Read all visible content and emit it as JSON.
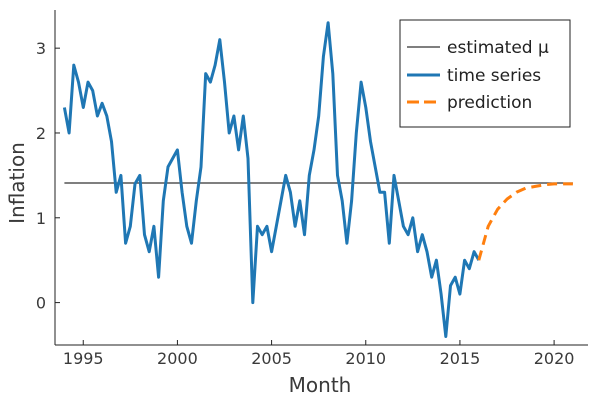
{
  "chart_data": {
    "type": "line",
    "xlabel": "Month",
    "ylabel": "Inflation",
    "xlim": [
      1993.5,
      2021.8
    ],
    "ylim": [
      -0.5,
      3.45
    ],
    "xticks": [
      1995,
      2000,
      2005,
      2010,
      2015,
      2020
    ],
    "xtick_labels": [
      "1995",
      "2000",
      "2005",
      "2010",
      "2015",
      "2020"
    ],
    "yticks": [
      0,
      1,
      2,
      3
    ],
    "ytick_labels": [
      "0",
      "1",
      "2",
      "3"
    ],
    "grid": false,
    "legend_position": "top-right",
    "series": [
      {
        "name": "estimated μ",
        "style": "solid-thin",
        "color": "#333333",
        "x": [
          1994.0,
          2021.0
        ],
        "y": [
          1.41,
          1.41
        ]
      },
      {
        "name": "time series",
        "style": "solid-thick",
        "color": "#1f77b4",
        "x": [
          1994.0,
          1994.25,
          1994.5,
          1994.75,
          1995.0,
          1995.25,
          1995.5,
          1995.75,
          1996.0,
          1996.25,
          1996.5,
          1996.75,
          1997.0,
          1997.25,
          1997.5,
          1997.75,
          1998.0,
          1998.25,
          1998.5,
          1998.75,
          1999.0,
          1999.25,
          1999.5,
          1999.75,
          2000.0,
          2000.25,
          2000.5,
          2000.75,
          2001.0,
          2001.25,
          2001.5,
          2001.75,
          2002.0,
          2002.25,
          2002.5,
          2002.75,
          2003.0,
          2003.25,
          2003.5,
          2003.75,
          2004.0,
          2004.25,
          2004.5,
          2004.75,
          2005.0,
          2005.25,
          2005.5,
          2005.75,
          2006.0,
          2006.25,
          2006.5,
          2006.75,
          2007.0,
          2007.25,
          2007.5,
          2007.75,
          2008.0,
          2008.25,
          2008.5,
          2008.75,
          2009.0,
          2009.25,
          2009.5,
          2009.75,
          2010.0,
          2010.25,
          2010.5,
          2010.75,
          2011.0,
          2011.25,
          2011.5,
          2011.75,
          2012.0,
          2012.25,
          2012.5,
          2012.75,
          2013.0,
          2013.25,
          2013.5,
          2013.75,
          2014.0,
          2014.25,
          2014.5,
          2014.75,
          2015.0,
          2015.25,
          2015.5,
          2015.75,
          2016.0
        ],
        "y": [
          2.3,
          2.0,
          2.8,
          2.6,
          2.3,
          2.6,
          2.5,
          2.2,
          2.35,
          2.2,
          1.9,
          1.3,
          1.5,
          0.7,
          0.9,
          1.4,
          1.5,
          0.8,
          0.6,
          0.9,
          0.3,
          1.2,
          1.6,
          1.7,
          1.8,
          1.3,
          0.9,
          0.7,
          1.2,
          1.6,
          2.7,
          2.6,
          2.8,
          3.1,
          2.6,
          2.0,
          2.2,
          1.8,
          2.2,
          1.7,
          0.0,
          0.9,
          0.8,
          0.9,
          0.6,
          0.9,
          1.2,
          1.5,
          1.3,
          0.9,
          1.2,
          0.8,
          1.5,
          1.8,
          2.2,
          2.9,
          3.3,
          2.7,
          1.5,
          1.2,
          0.7,
          1.2,
          2.0,
          2.6,
          2.3,
          1.9,
          1.6,
          1.3,
          1.3,
          0.7,
          1.5,
          1.2,
          0.9,
          0.8,
          1.0,
          0.6,
          0.8,
          0.6,
          0.3,
          0.5,
          0.1,
          -0.4,
          0.2,
          0.3,
          0.1,
          0.5,
          0.4,
          0.6,
          0.5
        ]
      },
      {
        "name": "prediction",
        "style": "dashed-thick",
        "color": "#ff7f0e",
        "x": [
          2016.0,
          2016.5,
          2017.0,
          2017.5,
          2018.0,
          2018.5,
          2019.0,
          2019.5,
          2020.0,
          2020.5,
          2021.0
        ],
        "y": [
          0.5,
          0.9,
          1.1,
          1.22,
          1.3,
          1.35,
          1.37,
          1.39,
          1.4,
          1.4,
          1.4
        ]
      }
    ]
  }
}
